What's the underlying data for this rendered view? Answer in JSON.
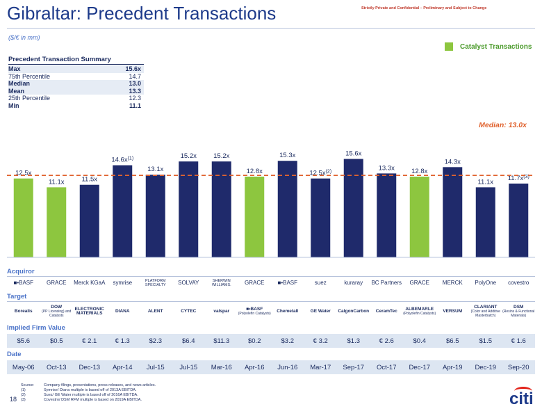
{
  "header": {
    "title": "Gibraltar: Precedent Transactions",
    "confidential": "Strictly Private and Confidential – Preliminary and Subject to Change",
    "units": "($/€ in mm)"
  },
  "legend": {
    "label": "Catalyst Transactions"
  },
  "summary": {
    "title": "Precedent Transaction Summary",
    "rows": [
      {
        "label": "Max",
        "value": "15.6x"
      },
      {
        "label": "75th Percentile",
        "value": "14.7"
      },
      {
        "label": "Median",
        "value": "13.0"
      },
      {
        "label": "Mean",
        "value": "13.3"
      },
      {
        "label": "25th Percentile",
        "value": "12.3"
      },
      {
        "label": "Min",
        "value": "11.1"
      }
    ]
  },
  "chart_data": {
    "type": "bar",
    "median_label": "Median: 13.0x",
    "median": 13.0,
    "ylim": [
      0,
      20
    ],
    "values": [
      12.5,
      11.1,
      11.5,
      14.6,
      13.1,
      15.2,
      15.2,
      12.8,
      15.3,
      12.5,
      15.6,
      13.3,
      12.8,
      14.3,
      11.1,
      11.7
    ],
    "labels": [
      "12.5x",
      "11.1x",
      "11.5x",
      "14.6x",
      "13.1x",
      "15.2x",
      "15.2x",
      "12.8x",
      "15.3x",
      "12.5x",
      "15.6x",
      "13.3x",
      "12.8x",
      "14.3x",
      "11.1x",
      "11.7x"
    ],
    "footnote_marks": [
      "",
      "",
      "",
      "(1)",
      "",
      "",
      "",
      "",
      "",
      "(2)",
      "",
      "",
      "",
      "",
      "",
      "(3)"
    ],
    "catalyst": [
      true,
      true,
      false,
      false,
      false,
      false,
      false,
      true,
      false,
      false,
      false,
      false,
      true,
      false,
      false,
      false
    ],
    "colors": {
      "catalyst": "#8dc63f",
      "other": "#1f2a6b",
      "median_line": "#e0632f",
      "median_text": "#e0632f"
    }
  },
  "acquiror": {
    "label": "Acquiror",
    "items": [
      "■•BASF",
      "GRACE",
      "Merck KGaA",
      "symrise",
      "PLATFORM SPECIALTY",
      "SOLVAY",
      "SHERWIN WILLIAMS.",
      "GRACE",
      "■•BASF",
      "suez",
      "kuraray",
      "BC Partners",
      "GRACE",
      "MERCK",
      "PolyOne",
      "covestro"
    ]
  },
  "target": {
    "label": "Target",
    "items": [
      {
        "name": "Borealis",
        "sub": ""
      },
      {
        "name": "DOW",
        "sub": "(PP Licensing) and Catalysts"
      },
      {
        "name": "ELECTRONIC MATERIALS",
        "sub": ""
      },
      {
        "name": "DIANA",
        "sub": ""
      },
      {
        "name": "ALENT",
        "sub": ""
      },
      {
        "name": "CYTEC",
        "sub": ""
      },
      {
        "name": "valspar",
        "sub": ""
      },
      {
        "name": "■•BASF",
        "sub": "(Polyolefin Catalysts)"
      },
      {
        "name": "Chemetall",
        "sub": ""
      },
      {
        "name": "GE Water",
        "sub": ""
      },
      {
        "name": "CalgonCarbon",
        "sub": ""
      },
      {
        "name": "CeramTec",
        "sub": ""
      },
      {
        "name": "ALBEMARLE",
        "sub": "(Polyolefin Catalysts)"
      },
      {
        "name": "VERSUM",
        "sub": ""
      },
      {
        "name": "CLARIANT",
        "sub": "(Color and Additive Masterbatch)"
      },
      {
        "name": "DSM",
        "sub": "(Resins & Functional Materials)"
      }
    ]
  },
  "implied_value": {
    "label": "Implied Firm Value",
    "values": [
      "$5.6",
      "$0.5",
      "€ 2.1",
      "€ 1.3",
      "$2.3",
      "$6.4",
      "$11.3",
      "$0.2",
      "$3.2",
      "€ 3.2",
      "$1.3",
      "€ 2.6",
      "$0.4",
      "$6.5",
      "$1.5",
      "€ 1.6"
    ]
  },
  "dates": {
    "label": "Date",
    "values": [
      "May-06",
      "Oct-13",
      "Dec-13",
      "Apr-14",
      "Jul-15",
      "Jul-15",
      "Mar-16",
      "Apr-16",
      "Jun-16",
      "Mar-17",
      "Sep-17",
      "Oct-17",
      "Dec-17",
      "Apr-19",
      "Dec-19",
      "Sep-20"
    ]
  },
  "footnotes": [
    {
      "key": "Source:",
      "text": "Company filings, presentations, press releases, and news articles."
    },
    {
      "key": "(1)",
      "text": "Symrise/ Diana multiple is based off of 2013A EBITDA."
    },
    {
      "key": "(2)",
      "text": "Suez/ GE Water multiple is based off of 2016A EBITDA."
    },
    {
      "key": "(3)",
      "text": "Covestro/ DSM RFM multiple is based on 2019A EBITDA."
    }
  ],
  "page_number": "18",
  "brand": "citi"
}
